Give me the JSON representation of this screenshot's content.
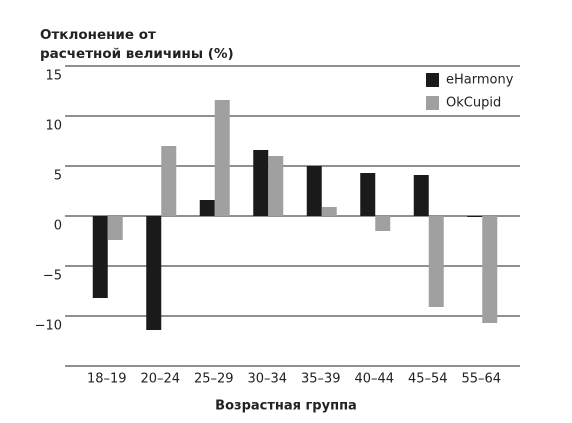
{
  "chart_data": {
    "type": "bar",
    "title": "Отклонение от расчетной величины (%)",
    "x_label": "Возрастная группа",
    "categories": [
      "18–19",
      "20–24",
      "25–29",
      "30–34",
      "35–39",
      "40–44",
      "45–54",
      "55–64"
    ],
    "series": [
      {
        "name": "eHarmony",
        "color": "#1a1a1a",
        "values": [
          -8.2,
          -11.4,
          1.6,
          6.6,
          5,
          4.3,
          4.1,
          -0.1
        ]
      },
      {
        "name": "OkCupid",
        "color": "#a0a0a0",
        "values": [
          -2.4,
          7,
          11.6,
          6,
          0.9,
          -1.5,
          -9.1,
          -10.7
        ]
      }
    ],
    "ylim": [
      -15,
      15
    ],
    "yticks": [
      15,
      10,
      5,
      0,
      {
        "value": -5,
        "label": "−5"
      },
      {
        "value": -10,
        "label": "−10"
      }
    ],
    "grid": true,
    "legend": "top-right"
  }
}
